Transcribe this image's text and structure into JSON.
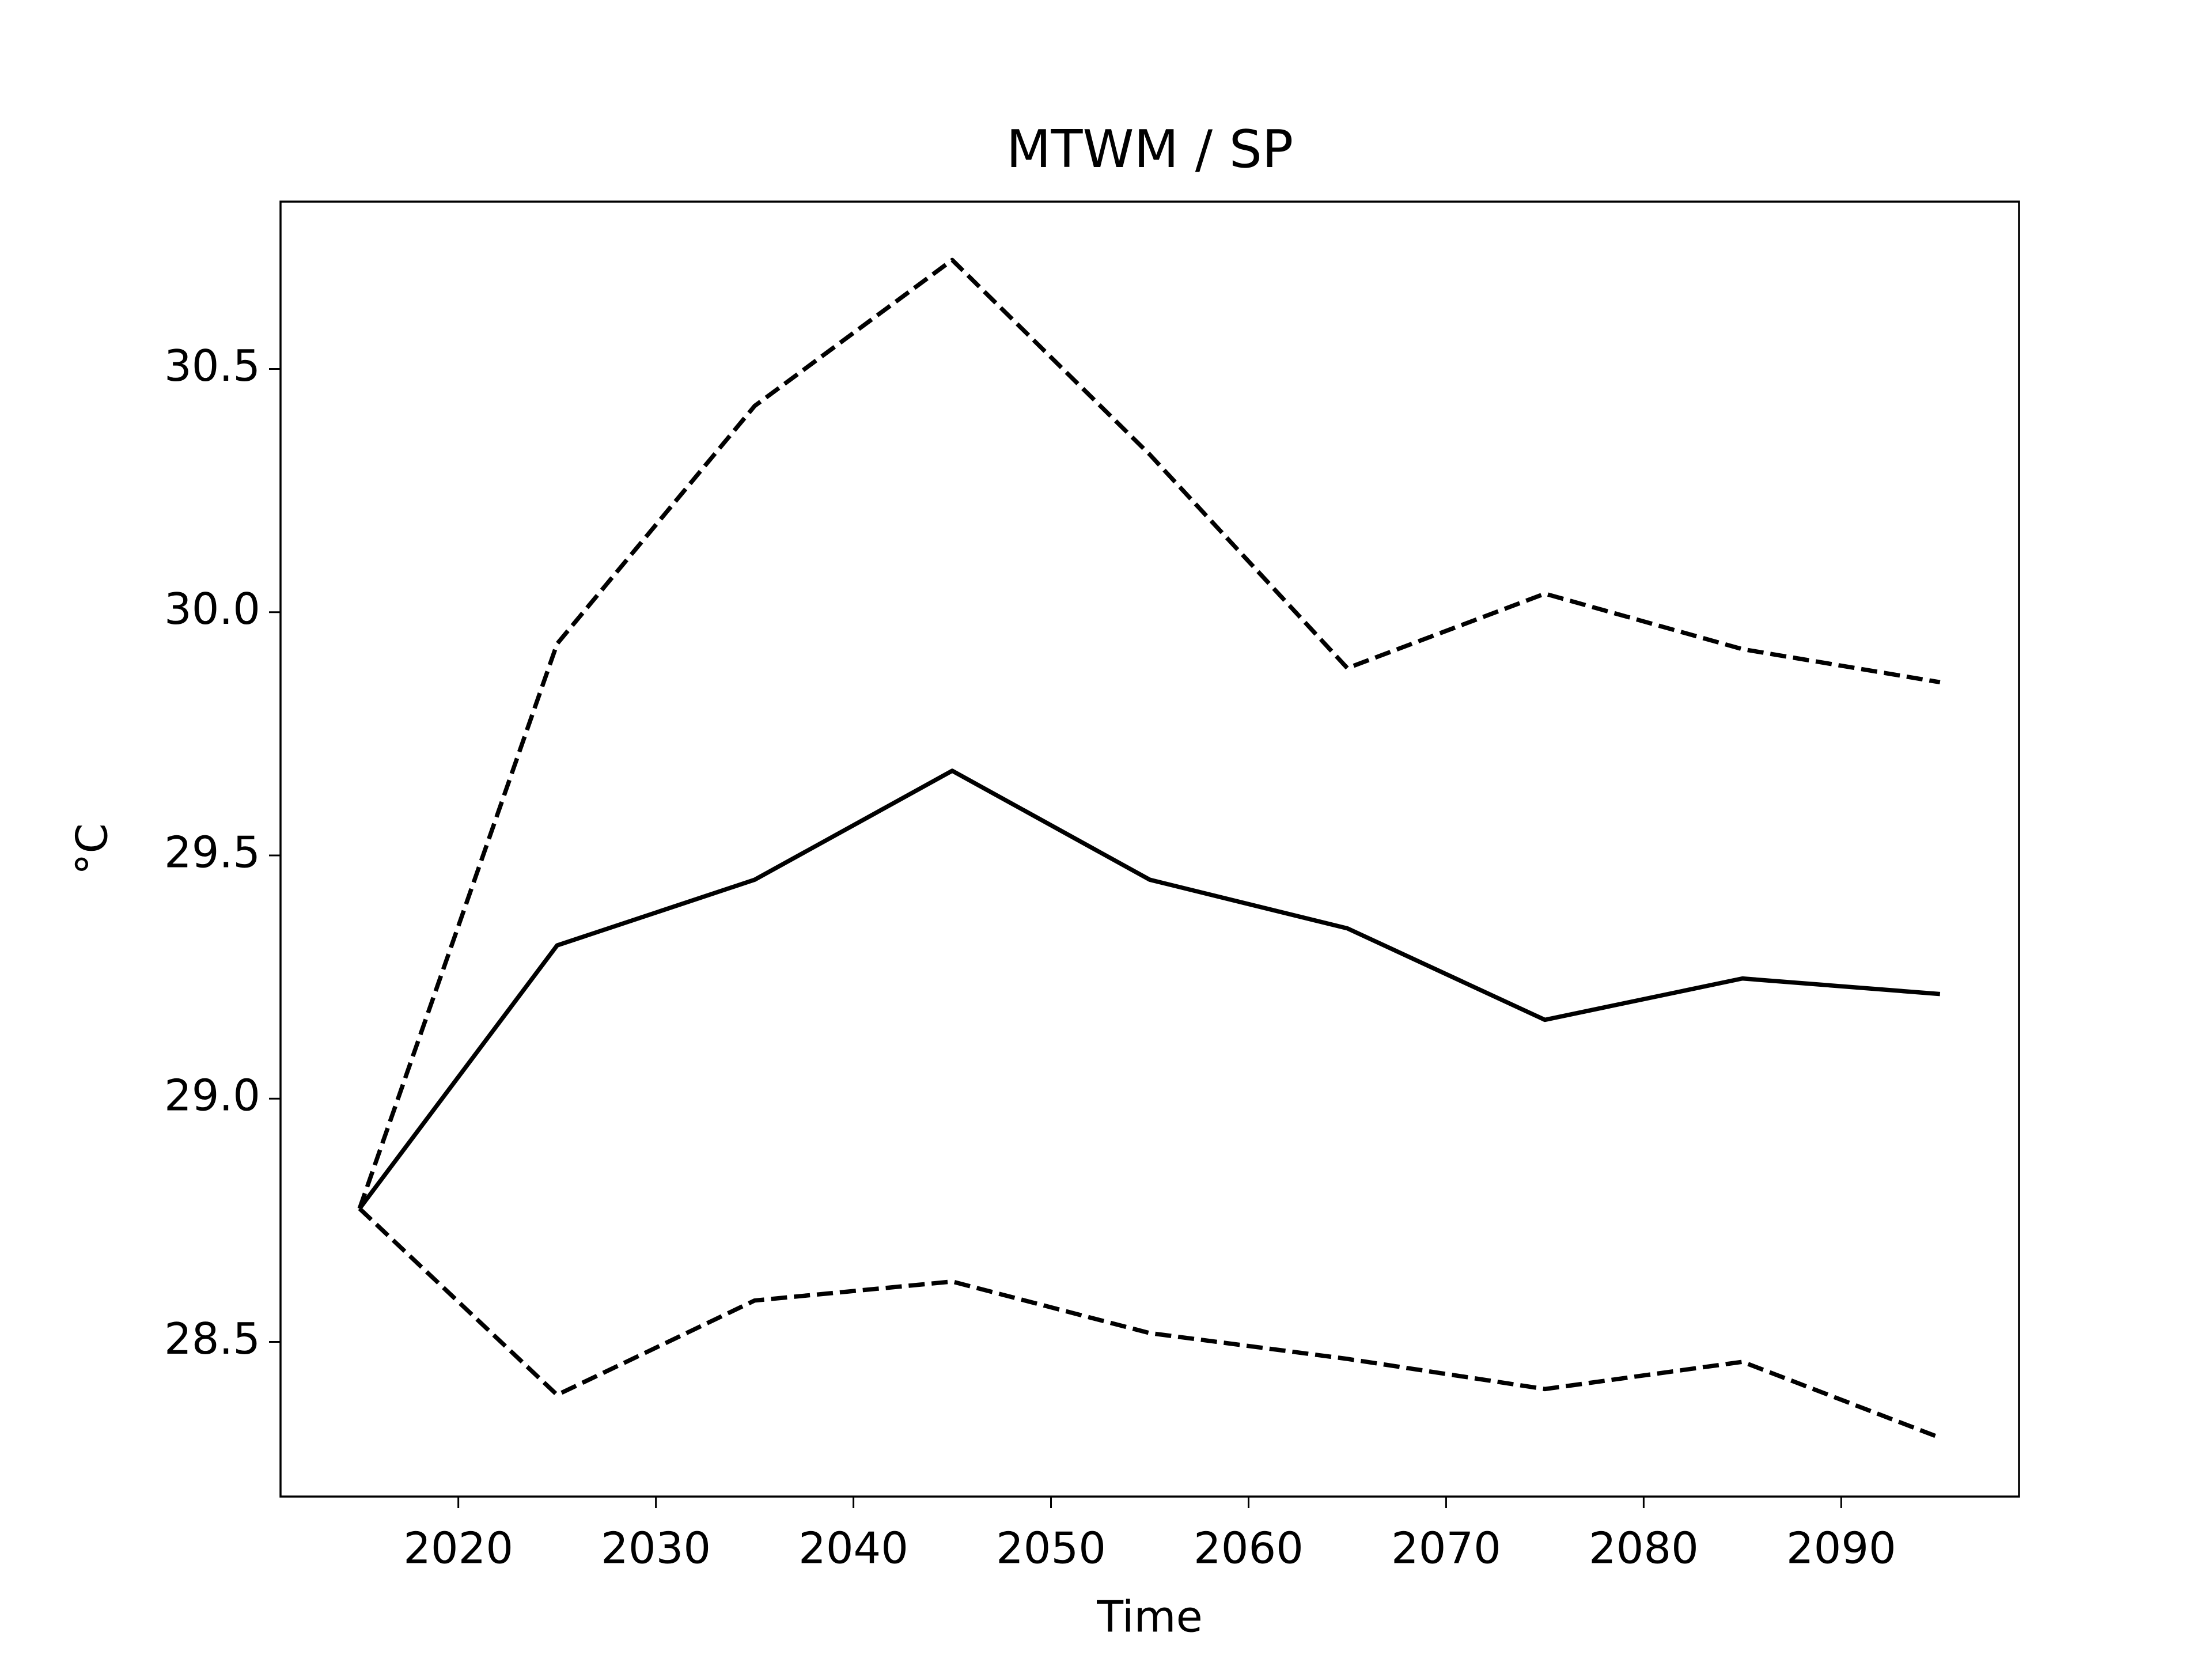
{
  "chart_data": {
    "type": "line",
    "title": "MTWM / SP",
    "xlabel": "Time",
    "ylabel": "°C",
    "x": [
      2015,
      2025,
      2035,
      2045,
      2055,
      2065,
      2075,
      2085,
      2095
    ],
    "series": [
      {
        "color": "#000000",
        "linestyle": "solid",
        "values": [
          28.774,
          29.315,
          29.45,
          29.674,
          29.45,
          29.35,
          29.162,
          29.247,
          29.215
        ]
      },
      {
        "color": "#000000",
        "linestyle": "dashed",
        "values": [
          28.774,
          29.935,
          30.424,
          30.724,
          30.324,
          29.885,
          30.038,
          29.924,
          29.856
        ]
      },
      {
        "color": "#000000",
        "linestyle": "dashed",
        "values": [
          28.774,
          28.391,
          28.585,
          28.624,
          28.518,
          28.465,
          28.403,
          28.459,
          28.303
        ]
      }
    ],
    "xlim": [
      2011,
      2099
    ],
    "xticks": [
      2020,
      2030,
      2040,
      2050,
      2060,
      2070,
      2080,
      2090
    ],
    "ylim": [
      28.182,
      30.844
    ],
    "yticks": [
      {
        "value": 28.5,
        "label": "28.5"
      },
      {
        "value": 29,
        "label": "29.0"
      },
      {
        "value": 29.5,
        "label": "29.5"
      },
      {
        "value": 30,
        "label": "30.0"
      },
      {
        "value": 30.5,
        "label": "30.5"
      }
    ],
    "grid": false
  }
}
